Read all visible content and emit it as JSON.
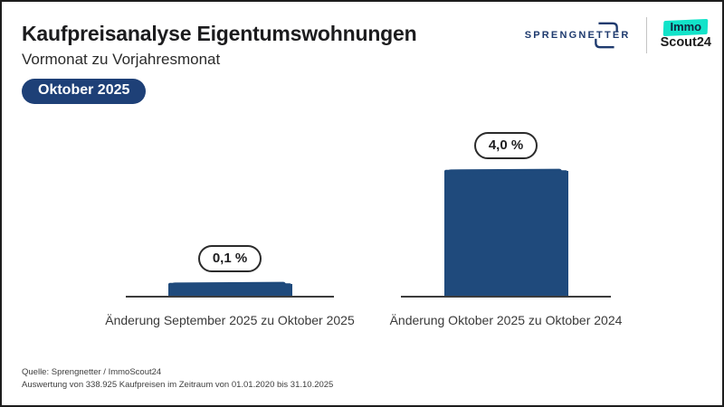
{
  "header": {
    "title": "Kaufpreisanalyse Eigentumswohnungen",
    "subtitle": "Vormonat zu Vorjahresmonat",
    "badge": "Oktober 2025"
  },
  "logos": {
    "sprengnetter": "SPRENGNETTER",
    "immoscout_top": "Immo",
    "immoscout_bottom": "Scout24"
  },
  "chart_data": {
    "type": "bar",
    "categories": [
      "Änderung September 2025 zu Oktober 2025",
      "Änderung Oktober 2025 zu Oktober 2024"
    ],
    "values": [
      0.1,
      4.0
    ],
    "value_labels": [
      "0,1 %",
      "4,0 %"
    ],
    "title": "Kaufpreisanalyse Eigentumswohnungen",
    "xlabel": "",
    "ylabel": "",
    "ylim": [
      0,
      4.4
    ],
    "grid": false,
    "legend": false
  },
  "footer": {
    "line1": "Quelle: Sprengnetter / ImmoScout24",
    "line2": "Auswertung von 338.925 Kaufpreisen im Zeitraum von 01.01.2020 bis 31.10.2025"
  },
  "colors": {
    "bar": "#1f4a7c",
    "badge_bg": "#1e4077",
    "logo_navy": "#1e3a6e",
    "immo_teal": "#12e3c9"
  }
}
